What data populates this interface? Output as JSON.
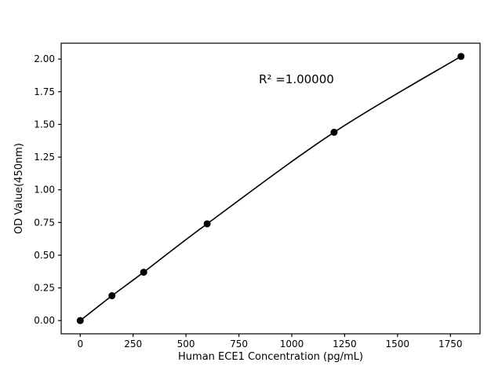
{
  "figure": {
    "background": "#ffffff"
  },
  "chart_data": {
    "type": "line",
    "title": "",
    "xlabel": "Human ECE1 Concentration (pg/mL)",
    "ylabel": "OD Value(450nm)",
    "x": [
      0,
      150,
      300,
      600,
      1200,
      1800
    ],
    "y": [
      0.0,
      0.19,
      0.37,
      0.74,
      1.44,
      2.02
    ],
    "xlim": [
      -90,
      1890
    ],
    "ylim": [
      -0.101,
      2.121
    ],
    "xticks": [
      0,
      250,
      500,
      750,
      1000,
      1250,
      1500,
      1750
    ],
    "yticks": [
      0.0,
      0.25,
      0.5,
      0.75,
      1.0,
      1.25,
      1.5,
      1.75,
      2.0
    ],
    "grid": false,
    "legend": null,
    "line_color": "#000000",
    "marker": "circle",
    "marker_color": "#000000",
    "annotation": {
      "text": "R² =1.00000",
      "x": 850,
      "y": 1.85
    }
  }
}
